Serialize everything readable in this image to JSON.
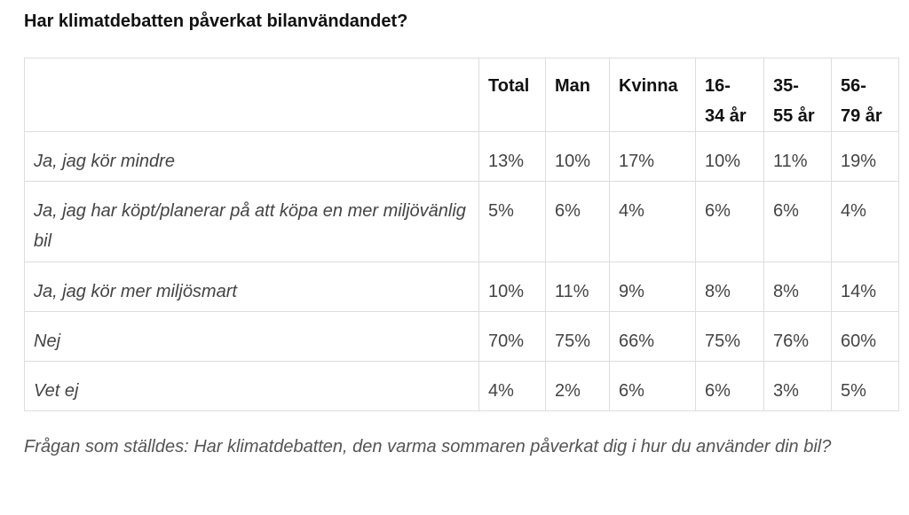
{
  "chart_data": {
    "type": "table",
    "title": "Har klimatdebatten påverkat bilanvändandet?",
    "columns": [
      "",
      "Total",
      "Man",
      "Kvinna",
      "16-34 år",
      "35-55 år",
      "56-79 år"
    ],
    "column_display": [
      {
        "line1": ""
      },
      {
        "line1": "Total"
      },
      {
        "line1": "Man"
      },
      {
        "line1": "Kvinna"
      },
      {
        "line1": "16-",
        "line2": "34 år"
      },
      {
        "line1": "35-",
        "line2": "55 år"
      },
      {
        "line1": "56-",
        "line2": "79 år"
      }
    ],
    "rows": [
      {
        "label": "Ja, jag kör mindre",
        "values": [
          "13%",
          "10%",
          "17%",
          "10%",
          "11%",
          "19%"
        ]
      },
      {
        "label": "Ja, jag har köpt/planerar på att köpa en mer miljövänlig bil",
        "values": [
          "5%",
          "6%",
          "4%",
          "6%",
          "6%",
          "4%"
        ]
      },
      {
        "label": "Ja, jag kör mer miljösmart",
        "values": [
          "10%",
          "11%",
          "9%",
          "8%",
          "8%",
          "14%"
        ]
      },
      {
        "label": "Nej",
        "values": [
          "70%",
          "75%",
          "66%",
          "75%",
          "76%",
          "60%"
        ]
      },
      {
        "label": "Vet ej",
        "values": [
          "4%",
          "2%",
          "6%",
          "6%",
          "3%",
          "5%"
        ]
      }
    ],
    "footnote": "Frågan som ställdes: Har klimatdebatten, den varma sommaren påverkat dig i hur du använder din bil?"
  }
}
